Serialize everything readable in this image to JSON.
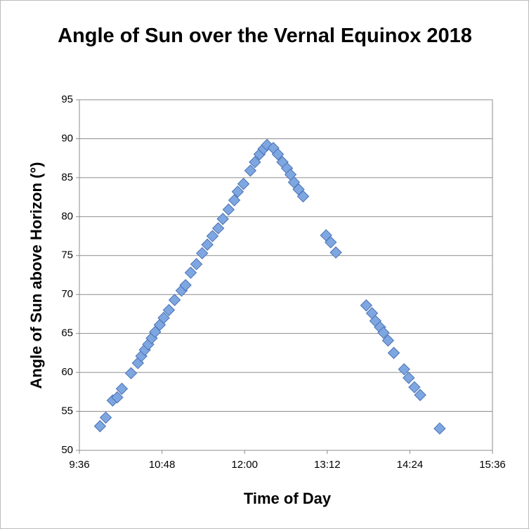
{
  "chart_data": {
    "type": "scatter",
    "title": "Angle of Sun over the Vernal Equinox 2018",
    "x_label": "Time of Day",
    "y_label": "Angle of Sun above Horizon (°)",
    "xlim": [
      576,
      936
    ],
    "xticks": [
      {
        "value": 576,
        "label": "9:36"
      },
      {
        "value": 648,
        "label": "10:48"
      },
      {
        "value": 720,
        "label": "12:00"
      },
      {
        "value": 792,
        "label": "13:12"
      },
      {
        "value": 864,
        "label": "14:24"
      },
      {
        "value": 936,
        "label": "15:36"
      }
    ],
    "ylim": [
      50,
      95
    ],
    "yticks": [
      50,
      55,
      60,
      65,
      70,
      75,
      80,
      85,
      90,
      95
    ],
    "grid": true,
    "series": [
      {
        "color": "#7ea6e0",
        "x": [
          594,
          599,
          605,
          609,
          613,
          621,
          627,
          630,
          633,
          636,
          639,
          642,
          646,
          649.5,
          654,
          659,
          665,
          668.5,
          673,
          678,
          683,
          687.5,
          692,
          697,
          701,
          706,
          711,
          714,
          719,
          725,
          729,
          733,
          736.5,
          739.5,
          745,
          749,
          753,
          757,
          760,
          763,
          767,
          771,
          791,
          795,
          799.5,
          826,
          831,
          834,
          838,
          841,
          845,
          850,
          859,
          863,
          868,
          873,
          890
        ],
        "values": [
          53.1,
          54.2,
          56.4,
          56.8,
          57.9,
          59.9,
          61.2,
          62.1,
          62.9,
          63.6,
          64.4,
          65.2,
          66.1,
          67.0,
          68.0,
          69.3,
          70.5,
          71.2,
          72.8,
          73.9,
          75.3,
          76.4,
          77.5,
          78.5,
          79.7,
          80.9,
          82.1,
          83.2,
          84.2,
          85.9,
          87.0,
          88.0,
          88.7,
          89.2,
          88.8,
          88.0,
          87.0,
          86.2,
          85.4,
          84.4,
          83.5,
          82.6,
          77.6,
          76.7,
          75.4,
          68.6,
          67.6,
          66.6,
          65.8,
          65.1,
          64.1,
          62.5,
          60.4,
          59.3,
          58.1,
          57.1,
          52.8
        ]
      }
    ]
  }
}
